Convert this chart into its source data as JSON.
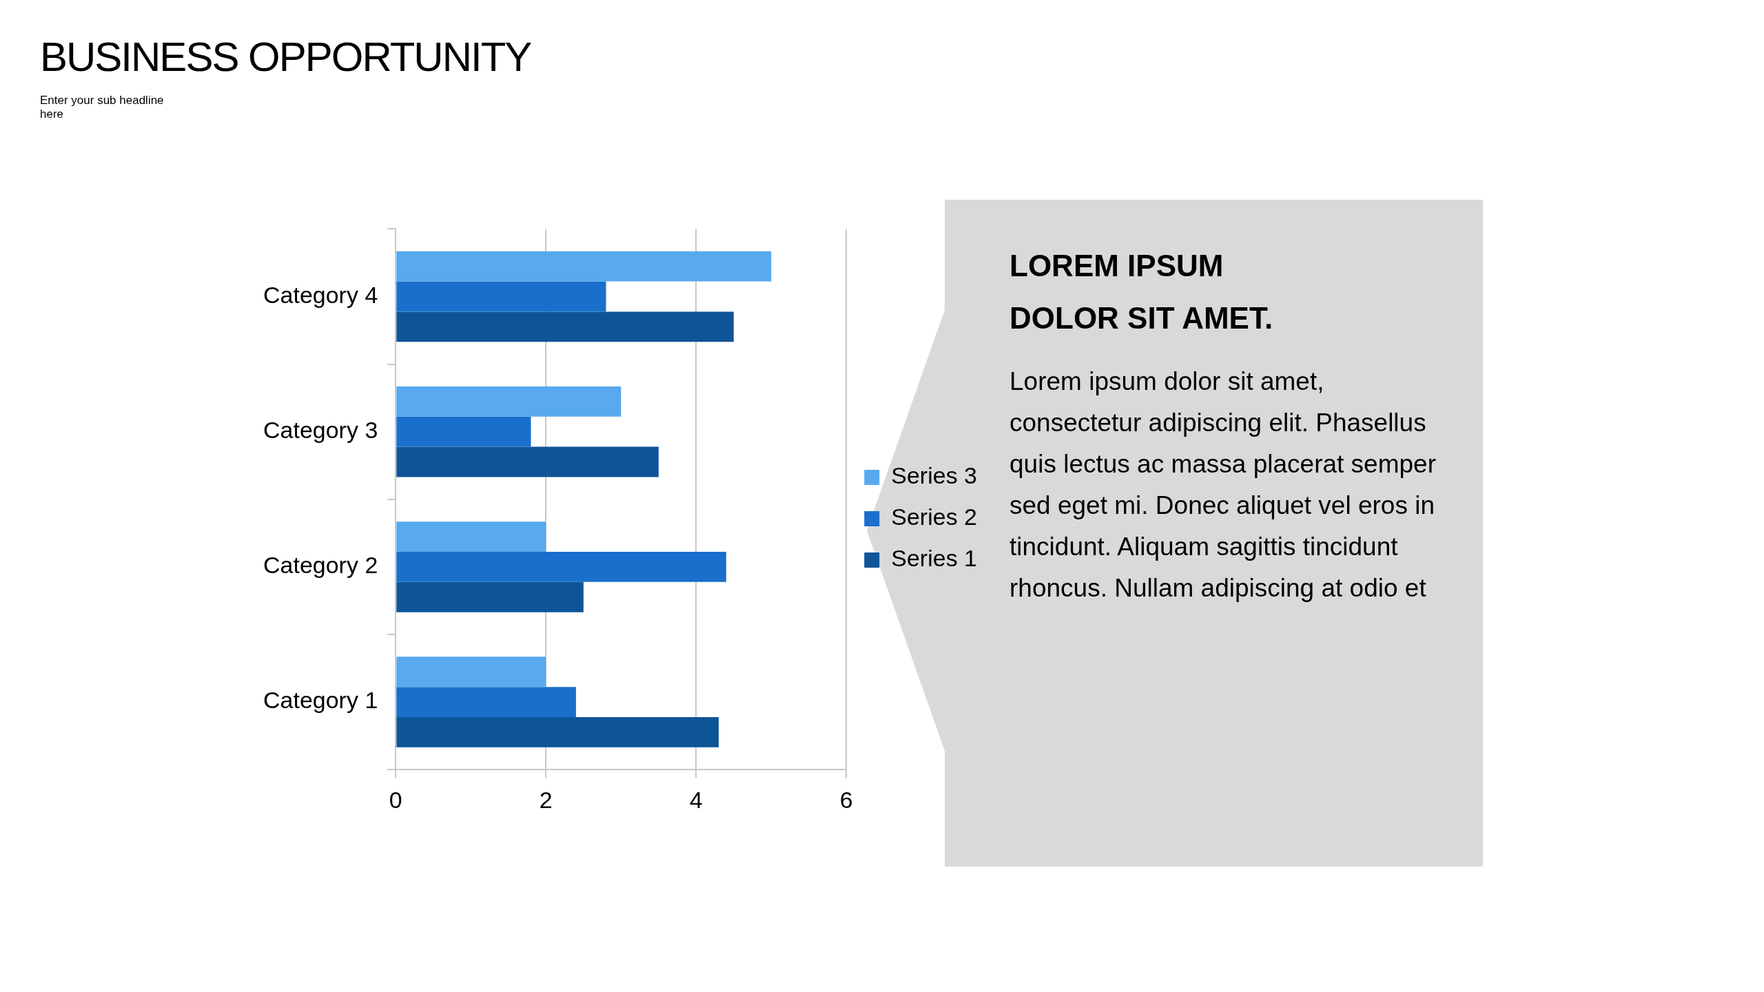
{
  "chart_data": {
    "type": "bar",
    "orientation": "horizontal",
    "title": "BUSINESS OPPORTUNITY",
    "subtitle": "Enter your sub headline here",
    "categories": [
      "Category 4",
      "Category 3",
      "Category 2",
      "Category 1"
    ],
    "series": [
      {
        "name": "Series 3",
        "color": "#58a9ee",
        "values": [
          5,
          3,
          2,
          2
        ]
      },
      {
        "name": "Series 2",
        "color": "#1a6fcc",
        "values": [
          2.8,
          1.8,
          4.4,
          2.4
        ]
      },
      {
        "name": "Series 1",
        "color": "#0e5598",
        "values": [
          4.5,
          3.5,
          2.5,
          4.3
        ]
      }
    ],
    "xlim": [
      0,
      6
    ],
    "xticks": [
      0,
      2,
      4,
      6
    ],
    "grid": "x",
    "legend": "right",
    "annotations": [
      "LOREM IPSUM DOLOR SIT AMET.",
      "Lorem ipsum dolor sit amet, consectetur adipiscing elit. Phasellus quis lectus ac massa placerat semper sed eget mi. Donec aliquet vel eros in tincidunt. Aliquam sagittis tincidunt rhoncus. Nullam adipiscing at odio et"
    ]
  }
}
